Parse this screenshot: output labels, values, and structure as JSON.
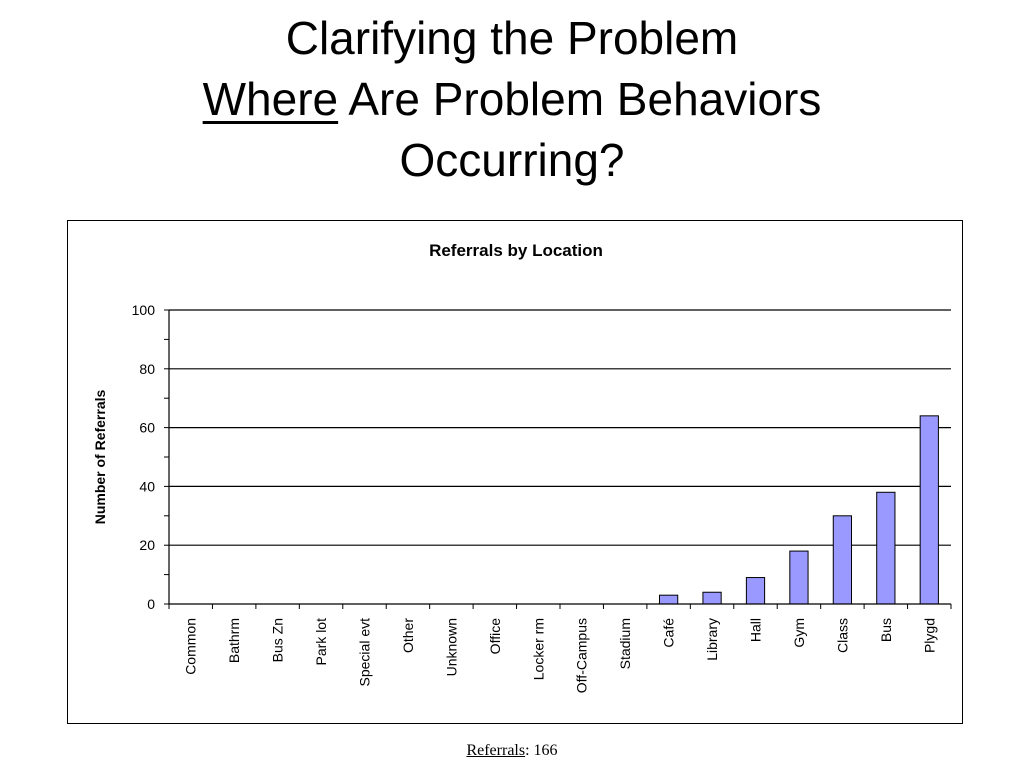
{
  "slide": {
    "title_line1": "Clarifying the Problem",
    "title_line2_emph": "Where",
    "title_line2_rest": " Are Problem Behaviors",
    "title_line3": "Occurring?"
  },
  "footer": {
    "label": "Referrals",
    "value": ": 166"
  },
  "chart_data": {
    "type": "bar",
    "title": "Referrals by Location",
    "xlabel": "",
    "ylabel": "Number of Referrals",
    "ylim": [
      0,
      100
    ],
    "yticks": [
      0,
      20,
      40,
      60,
      80,
      100
    ],
    "grid": true,
    "legend": false,
    "bar_color": "#9999ff",
    "categories": [
      "Common",
      "Bathrm",
      "Bus Zn",
      "Park lot",
      "Special evt",
      "Other",
      "Unknown",
      "Office",
      "Locker rm",
      "Off-Campus",
      "Stadium",
      "Café",
      "Library",
      "Hall",
      "Gym",
      "Class",
      "Bus",
      "Plygd"
    ],
    "values": [
      0,
      0,
      0,
      0,
      0,
      0,
      0,
      0,
      0,
      0,
      0,
      3,
      4,
      9,
      18,
      30,
      38,
      64
    ]
  }
}
